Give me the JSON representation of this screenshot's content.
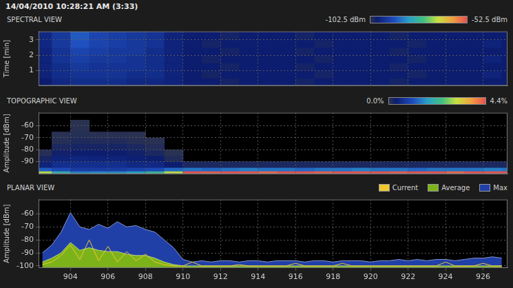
{
  "header": "14/04/2010 10:28:21 AM (3:33)",
  "chart_data": [
    {
      "type": "heatmap",
      "title": "SPECTRAL VIEW",
      "y_label": "Time [min]",
      "xlim": [
        902.3,
        927.3
      ],
      "xticks": [
        904,
        906,
        908,
        910,
        912,
        914,
        916,
        918,
        920,
        922,
        924,
        926
      ],
      "ylim": [
        0,
        3.55
      ],
      "yticks": [
        1,
        2,
        3
      ],
      "grid": true,
      "tick_labels": "y",
      "x_edges": [
        902,
        903,
        904,
        905,
        906,
        907,
        908,
        909,
        910,
        911,
        912,
        913,
        914,
        915,
        916,
        917,
        918,
        919,
        920,
        921,
        922,
        923,
        924,
        925,
        926,
        927,
        928
      ],
      "y_edges": [
        0,
        0.5,
        1,
        1.5,
        2,
        2.5,
        3,
        3.55
      ],
      "cells": [
        [
          -99,
          -97,
          -96,
          -96,
          -96,
          -97,
          -97,
          -98,
          -99,
          -99,
          -100,
          -99,
          -99,
          -99,
          -100,
          -99,
          -99,
          -99,
          -99,
          -100,
          -99,
          -99,
          -99,
          -99,
          -99,
          -99
        ],
        [
          -98,
          -96,
          -95,
          -95,
          -95,
          -96,
          -96,
          -98,
          -99,
          -100,
          -99,
          -99,
          -99,
          -99,
          -99,
          -100,
          -99,
          -99,
          -99,
          -99,
          -100,
          -99,
          -99,
          -99,
          -98,
          -99
        ],
        [
          -98,
          -96,
          -94,
          -95,
          -95,
          -95,
          -96,
          -98,
          -99,
          -99,
          -100,
          -99,
          -99,
          -99,
          -100,
          -99,
          -99,
          -99,
          -99,
          -100,
          -99,
          -99,
          -99,
          -99,
          -99,
          -99
        ],
        [
          -98,
          -95,
          -93,
          -94,
          -94,
          -95,
          -96,
          -98,
          -99,
          -100,
          -99,
          -99,
          -99,
          -99,
          -99,
          -100,
          -99,
          -99,
          -99,
          -99,
          -100,
          -99,
          -99,
          -99,
          -98,
          -99
        ],
        [
          -98,
          -95,
          -92,
          -93,
          -94,
          -94,
          -96,
          -98,
          -99,
          -99,
          -100,
          -99,
          -99,
          -99,
          -100,
          -99,
          -99,
          -99,
          -99,
          -100,
          -99,
          -99,
          -99,
          -99,
          -99,
          -99
        ],
        [
          -97,
          -94,
          -90,
          -92,
          -93,
          -94,
          -95,
          -98,
          -99,
          -100,
          -99,
          -99,
          -99,
          -99,
          -99,
          -100,
          -99,
          -99,
          -99,
          -99,
          -100,
          -99,
          -99,
          -99,
          -98,
          -99
        ],
        [
          -97,
          -94,
          -89,
          -92,
          -93,
          -94,
          -95,
          -98,
          -99,
          -99,
          -100,
          -99,
          -99,
          -99,
          -100,
          -99,
          -99,
          -99,
          -99,
          -100,
          -99,
          -99,
          -99,
          -99,
          -99,
          -99
        ]
      ],
      "colorbar": {
        "range": [
          -102.5,
          -52.5
        ],
        "ticks": [
          {
            "value": -102.5,
            "label": "-102.5 dBm"
          },
          {
            "value": -52.5,
            "label": "-52.5 dBm"
          }
        ]
      }
    },
    {
      "type": "heatmap",
      "title": "TOPOGRAPHIC VIEW",
      "y_label": "Amplitude [dBm]",
      "xlim": [
        902.3,
        927.3
      ],
      "xticks": [
        904,
        906,
        908,
        910,
        912,
        914,
        916,
        918,
        920,
        922,
        924,
        926
      ],
      "ylim": [
        -100.5,
        -49
      ],
      "yticks": [
        -90,
        -80,
        -70,
        -60
      ],
      "grid": true,
      "tick_labels": "y",
      "x_edges": [
        902,
        903,
        904,
        905,
        906,
        907,
        908,
        909,
        910,
        911,
        912,
        913,
        914,
        915,
        916,
        917,
        918,
        919,
        920,
        921,
        922,
        923,
        924,
        925,
        926,
        927,
        928
      ],
      "y_edges": [
        -100.5,
        -98,
        -95,
        -90,
        -85,
        -80,
        -75,
        -70,
        -65,
        -60,
        -55
      ],
      "cells": [
        [
          3.0,
          2.0,
          1.5,
          1.6,
          1.6,
          1.8,
          2.2,
          3.0,
          4.4,
          4.3,
          4.4,
          4.4,
          4.2,
          4.4,
          4.4,
          4.3,
          4.4,
          4.4,
          4.4,
          4.3,
          4.4,
          4.4,
          4.2,
          4.4,
          4.4,
          4.4
        ],
        [
          1.2,
          1.0,
          0.8,
          0.8,
          0.8,
          0.9,
          1.0,
          1.3,
          1.4,
          1.3,
          1.4,
          1.5,
          1.4,
          1.4,
          1.3,
          1.4,
          1.4,
          1.5,
          1.4,
          1.4,
          1.3,
          1.4,
          1.4,
          1.4,
          1.5,
          1.4
        ],
        [
          0.4,
          0.6,
          0.6,
          0.6,
          0.6,
          0.5,
          0.5,
          0.3,
          0.15,
          0.15,
          0.15,
          0.15,
          0.15,
          0.15,
          0.15,
          0.15,
          0.15,
          0.15,
          0.15,
          0.15,
          0.15,
          0.15,
          0.15,
          0.15,
          0.15,
          0.15
        ],
        [
          0.2,
          0.4,
          0.45,
          0.4,
          0.4,
          0.35,
          0.3,
          0.1,
          0,
          0,
          0,
          0,
          0,
          0,
          0,
          0,
          0,
          0,
          0,
          0,
          0,
          0,
          0,
          0,
          0,
          0
        ],
        [
          0.05,
          0.25,
          0.3,
          0.3,
          0.3,
          0.25,
          0.15,
          0.02,
          0,
          0,
          0,
          0,
          0,
          0,
          0,
          0,
          0,
          0,
          0,
          0,
          0,
          0,
          0,
          0,
          0,
          0
        ],
        [
          0,
          0.15,
          0.2,
          0.2,
          0.2,
          0.15,
          0.08,
          0,
          0,
          0,
          0,
          0,
          0,
          0,
          0,
          0,
          0,
          0,
          0,
          0,
          0,
          0,
          0,
          0,
          0,
          0
        ],
        [
          0,
          0.05,
          0.12,
          0.1,
          0.1,
          0.05,
          0.02,
          0,
          0,
          0,
          0,
          0,
          0,
          0,
          0,
          0,
          0,
          0,
          0,
          0,
          0,
          0,
          0,
          0,
          0,
          0
        ],
        [
          0,
          0.02,
          0.06,
          0.03,
          0.03,
          0.01,
          0,
          0,
          0,
          0,
          0,
          0,
          0,
          0,
          0,
          0,
          0,
          0,
          0,
          0,
          0,
          0,
          0,
          0,
          0,
          0
        ],
        [
          0,
          0,
          0.03,
          0,
          0,
          0,
          0,
          0,
          0,
          0,
          0,
          0,
          0,
          0,
          0,
          0,
          0,
          0,
          0,
          0,
          0,
          0,
          0,
          0,
          0,
          0
        ],
        [
          0,
          0,
          0.01,
          0,
          0,
          0,
          0,
          0,
          0,
          0,
          0,
          0,
          0,
          0,
          0,
          0,
          0,
          0,
          0,
          0,
          0,
          0,
          0,
          0,
          0,
          0
        ]
      ],
      "colorbar": {
        "range": [
          0,
          4.4
        ],
        "ticks": [
          {
            "value": 0,
            "label": "0.0%"
          },
          {
            "value": 4.4,
            "label": "4.4%"
          }
        ]
      }
    },
    {
      "type": "line",
      "title": "PLANAR VIEW",
      "y_label": "Amplitude [dBm]",
      "xlim": [
        902.3,
        927.3
      ],
      "xticks": [
        904,
        906,
        908,
        910,
        912,
        914,
        916,
        918,
        920,
        922,
        924,
        926
      ],
      "ylim": [
        -101.5,
        -49
      ],
      "yticks": [
        -100,
        -90,
        -80,
        -70,
        -60
      ],
      "grid": true,
      "legend": "top-right",
      "x": [
        902.5,
        903,
        903.5,
        904,
        904.5,
        905,
        905.5,
        906,
        906.5,
        907,
        907.5,
        908,
        908.5,
        909,
        909.5,
        910,
        910.5,
        911,
        911.5,
        912,
        912.5,
        913,
        913.5,
        914,
        914.5,
        915,
        915.5,
        916,
        916.5,
        917,
        917.5,
        918,
        918.5,
        919,
        919.5,
        920,
        920.5,
        921,
        921.5,
        922,
        922.5,
        923,
        923.5,
        924,
        924.5,
        925,
        925.5,
        926,
        926.5,
        927
      ],
      "series": [
        {
          "name": "Current",
          "color": "#f0c830",
          "type": "line",
          "values": [
            -99,
            -97,
            -92,
            -84,
            -95,
            -80,
            -96,
            -85,
            -97,
            -89,
            -96,
            -91,
            -97,
            -99,
            -100,
            -100,
            -97,
            -100,
            -100,
            -100,
            -100,
            -99,
            -100,
            -100,
            -100,
            -100,
            -100,
            -98,
            -100,
            -100,
            -100,
            -100,
            -98,
            -100,
            -100,
            -100,
            -100,
            -100,
            -100,
            -100,
            -100,
            -100,
            -100,
            -97,
            -100,
            -100,
            -100,
            -98,
            -100,
            -100
          ]
        },
        {
          "name": "Average",
          "color": "#7db31a",
          "type": "area",
          "values": [
            -97,
            -94,
            -90,
            -82,
            -88,
            -86,
            -88,
            -89,
            -89,
            -91,
            -92,
            -92,
            -94,
            -97,
            -99,
            -100,
            -100,
            -100,
            -100,
            -100,
            -100,
            -100,
            -100,
            -100,
            -100,
            -100,
            -100,
            -100,
            -100,
            -100,
            -100,
            -100,
            -100,
            -100,
            -100,
            -100,
            -100,
            -100,
            -100,
            -100,
            -100,
            -100,
            -100,
            -100,
            -100,
            -100,
            -100,
            -100,
            -100,
            -100
          ]
        },
        {
          "name": "Max",
          "color": "#2040a8",
          "type": "area",
          "values": [
            -90,
            -84,
            -74,
            -59,
            -70,
            -72,
            -68,
            -71,
            -66,
            -70,
            -69,
            -72,
            -74,
            -80,
            -86,
            -95,
            -97,
            -96,
            -97,
            -96,
            -96,
            -97,
            -96,
            -96,
            -97,
            -96,
            -96,
            -96,
            -97,
            -96,
            -96,
            -97,
            -96,
            -96,
            -96,
            -97,
            -96,
            -96,
            -95,
            -96,
            -95,
            -96,
            -95,
            -95,
            -96,
            -95,
            -94,
            -94,
            -93,
            -94
          ]
        }
      ]
    }
  ]
}
